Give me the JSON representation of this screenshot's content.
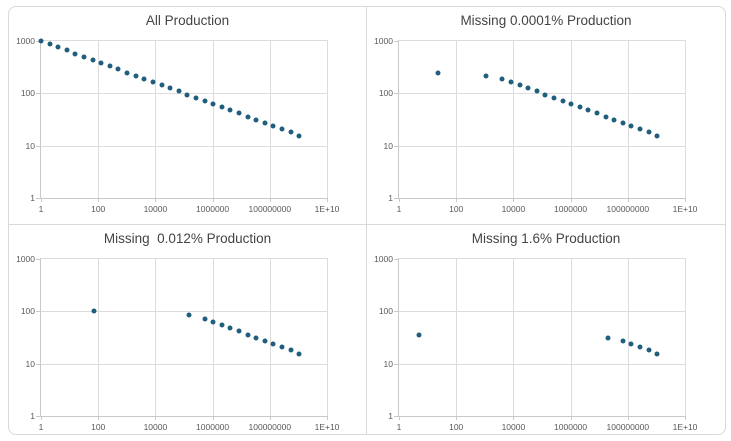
{
  "colors": {
    "background": "#ffffff",
    "panel_border": "#d9d9d9",
    "gridline": "#dcdcdc",
    "axis_line": "#c9c9c9",
    "tick_label": "#595959",
    "title": "#444444",
    "marker": "#1f5f7d"
  },
  "chart_data": [
    {
      "type": "scatter",
      "title": "All Production",
      "xscale": "log",
      "yscale": "log",
      "xlim": [
        1,
        10000000000
      ],
      "ylim": [
        1,
        1000
      ],
      "grid": true,
      "legend": "none",
      "x_tick_values": [
        1,
        100,
        10000,
        1000000,
        100000000,
        10000000000
      ],
      "x_tick_labels": [
        "1",
        "100",
        "10000",
        "1000000",
        "100000000",
        "1E+10"
      ],
      "y_tick_values": [
        1,
        10,
        100,
        1000
      ],
      "y_tick_labels": [
        "1",
        "10",
        "100",
        "1000"
      ],
      "x": [
        1,
        2,
        4,
        8,
        16,
        32,
        64,
        128,
        256,
        512,
        1024,
        2048,
        4096,
        8192,
        16384,
        32768,
        65536,
        131072,
        262144,
        524288,
        1048576,
        2097152,
        4194304,
        8388608,
        16777216,
        33554432,
        67108864,
        134217728,
        268435456,
        536870912,
        1073741824
      ],
      "y": [
        1000,
        870.6,
        757.9,
        659.8,
        574.3,
        500,
        435.3,
        379,
        329.9,
        287.2,
        250,
        217.6,
        189.5,
        164.9,
        143.6,
        125,
        108.8,
        94.7,
        82.5,
        71.8,
        62.5,
        54.4,
        47.4,
        41.2,
        35.9,
        31.3,
        27.2,
        23.7,
        20.6,
        17.9,
        15.6
      ]
    },
    {
      "type": "scatter",
      "title": "Missing 0.0001% Production",
      "xscale": "log",
      "yscale": "log",
      "xlim": [
        1,
        10000000000
      ],
      "ylim": [
        1,
        1000
      ],
      "grid": true,
      "legend": "none",
      "x_tick_values": [
        1,
        100,
        10000,
        1000000,
        100000000,
        10000000000
      ],
      "x_tick_labels": [
        "1",
        "100",
        "10000",
        "1000000",
        "100000000",
        "1E+10"
      ],
      "y_tick_values": [
        1,
        10,
        100,
        1000
      ],
      "y_tick_labels": [
        "1",
        "10",
        "100",
        "1000"
      ],
      "x": [
        23,
        1100,
        4096,
        8192,
        16384,
        32768,
        65536,
        131072,
        262144,
        524288,
        1048576,
        2097152,
        4194304,
        8388608,
        16777216,
        33554432,
        67108864,
        134217728,
        268435456,
        536870912,
        1073741824
      ],
      "y": [
        240,
        212,
        189.5,
        164.9,
        143.6,
        125,
        108.8,
        94.7,
        82.5,
        71.8,
        62.5,
        54.4,
        47.4,
        41.2,
        35.9,
        31.3,
        27.2,
        23.7,
        20.6,
        17.9,
        15.6
      ]
    },
    {
      "type": "scatter",
      "title": "Missing  0.012% Production",
      "xscale": "log",
      "yscale": "log",
      "xlim": [
        1,
        10000000000
      ],
      "ylim": [
        1,
        1000
      ],
      "grid": true,
      "legend": "none",
      "x_tick_values": [
        1,
        100,
        10000,
        1000000,
        100000000,
        10000000000
      ],
      "x_tick_labels": [
        "1",
        "100",
        "10000",
        "1000000",
        "100000000",
        "1E+10"
      ],
      "y_tick_values": [
        1,
        10,
        100,
        1000
      ],
      "y_tick_labels": [
        "1",
        "10",
        "100",
        "1000"
      ],
      "x": [
        70,
        150000,
        524288,
        1048576,
        2097152,
        4194304,
        8388608,
        16777216,
        33554432,
        67108864,
        134217728,
        268435456,
        536870912,
        1073741824
      ],
      "y": [
        100,
        84,
        71.8,
        62.5,
        54.4,
        47.4,
        41.2,
        35.9,
        31.3,
        27.2,
        23.7,
        20.6,
        17.9,
        15.6
      ]
    },
    {
      "type": "scatter",
      "title": "Missing 1.6% Production",
      "xscale": "log",
      "yscale": "log",
      "xlim": [
        1,
        10000000000
      ],
      "ylim": [
        1,
        1000
      ],
      "grid": true,
      "legend": "none",
      "x_tick_values": [
        1,
        100,
        10000,
        1000000,
        100000000,
        10000000000
      ],
      "x_tick_labels": [
        "1",
        "100",
        "10000",
        "1000000",
        "100000000",
        "1E+10"
      ],
      "y_tick_values": [
        1,
        10,
        100,
        1000
      ],
      "y_tick_labels": [
        "1",
        "10",
        "100",
        "1000"
      ],
      "x": [
        5,
        20000000,
        67108864,
        134217728,
        268435456,
        536870912,
        1073741824
      ],
      "y": [
        36,
        31,
        27.2,
        23.7,
        20.6,
        17.9,
        15.6
      ]
    }
  ]
}
